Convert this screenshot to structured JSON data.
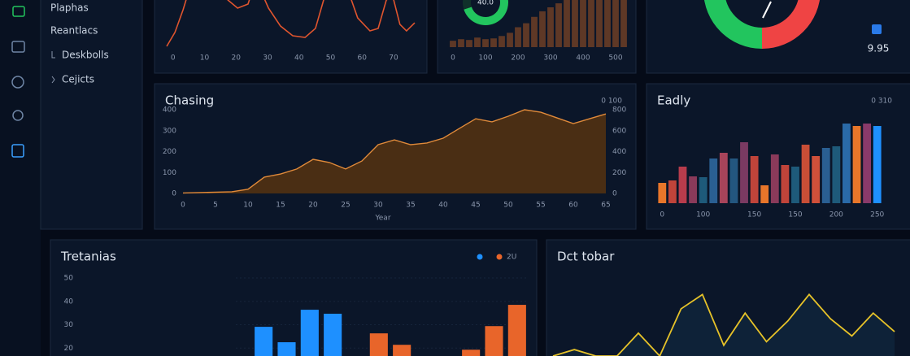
{
  "sidebar": {
    "items": [
      "Plaphas",
      "Reantlacs",
      "Deskbolls",
      "Cejicts"
    ]
  },
  "chart_data": [
    {
      "type": "line",
      "x": [
        -2,
        0.6,
        3.2,
        5.7,
        9.6,
        13.5,
        17.4,
        20.5,
        23.8,
        26.3,
        30.3,
        34.1,
        38,
        41.9,
        45.2,
        47.8,
        50.9,
        54.8,
        58.6,
        62.5,
        65.1,
        67.7,
        69.7,
        72,
        74.1,
        76.7
      ],
      "series": [
        {
          "color": "#e0552e",
          "values": [
            1,
            18.4,
            46.9,
            79.6,
            94.9,
            89.8,
            59.2,
            49,
            54.1,
            84.7,
            49,
            26.5,
            14.3,
            12.2,
            23.5,
            59.2,
            89.8,
            79.6,
            36.7,
            20.4,
            23.5,
            59.2,
            64.3,
            28.6,
            20.4,
            30.6
          ]
        }
      ],
      "xlim": [
        -2,
        78
      ],
      "ylim": [
        0,
        100
      ],
      "xticks": [
        0,
        10,
        20,
        30,
        40,
        50,
        60,
        70
      ]
    },
    {
      "type": "bar",
      "categories": [
        "0",
        null,
        null,
        null,
        "100",
        null,
        null,
        null,
        "200",
        null,
        null,
        null,
        "300",
        null,
        null,
        null,
        "400",
        null,
        null,
        null,
        "500",
        null
      ],
      "values": [
        8,
        10,
        9,
        12,
        10,
        11,
        14,
        18,
        25,
        30,
        38,
        45,
        50,
        55,
        62,
        70,
        78,
        80,
        85,
        90,
        95,
        100
      ],
      "color": "#5e3826",
      "ylim": [
        0,
        100
      ]
    },
    {
      "type": "donut",
      "values": [
        70,
        30
      ],
      "colors": [
        "#22c55e",
        "#10302a"
      ],
      "center_label": "40.0"
    },
    {
      "type": "donut",
      "values": [
        50,
        50
      ],
      "colors": [
        "#ef4444",
        "#22c55e"
      ],
      "caption": "9.95"
    },
    {
      "type": "area",
      "title": "Chasing",
      "corner_label": "0 100",
      "xlabel": "Year",
      "x": [
        0,
        2.5,
        5,
        7.5,
        10,
        12.5,
        15,
        17.5,
        20,
        22.5,
        25,
        27.5,
        30,
        32.5,
        35,
        37.5,
        40,
        42.5,
        45,
        47.5,
        50,
        52.5,
        55,
        57.5,
        60,
        62.5,
        65
      ],
      "values": [
        2,
        4,
        6,
        8,
        20,
        78,
        93,
        117,
        163,
        148,
        117,
        155,
        233,
        256,
        233,
        241,
        264,
        311,
        357,
        342,
        369,
        400,
        388,
        361,
        334,
        357,
        380
      ],
      "color": "#e08a3a",
      "xlim": [
        0,
        65
      ],
      "xticks": [
        0,
        5,
        10,
        15,
        20,
        25,
        30,
        35,
        40,
        45,
        50,
        55,
        60,
        65
      ],
      "ylim": [
        0,
        400
      ],
      "yticks": [
        0,
        100,
        200,
        300,
        400
      ],
      "y2lim": [
        0,
        800
      ],
      "y2ticks": [
        0,
        200,
        400,
        600,
        800
      ]
    },
    {
      "type": "bar",
      "title": "Eadly",
      "corner_label": "0 310",
      "categories": [
        "0",
        null,
        null,
        null,
        "100",
        null,
        null,
        null,
        null,
        "150",
        null,
        null,
        null,
        "150",
        null,
        null,
        null,
        "200",
        null,
        null,
        null,
        "250"
      ],
      "values": [
        25,
        28,
        45,
        33,
        32,
        55,
        62,
        55,
        75,
        58,
        22,
        60,
        47,
        45,
        72,
        58,
        68,
        70,
        98,
        95,
        98,
        95
      ],
      "colors": [
        "#e8762a",
        "#c0443a",
        "#b83c4c",
        "#8a3a5a",
        "#1e5a7a",
        "#2a5f92",
        "#a8445a",
        "#23567f",
        "#7a3a62",
        "#c0443a",
        "#e8762a",
        "#8a3a5a",
        "#c0443a",
        "#1e5a7a",
        "#c84e36",
        "#d0503a",
        "#2a5f92",
        "#1e5a7a",
        "#2a6aa8",
        "#e8762a",
        "#8a3a6a",
        "#1e90ff"
      ],
      "ylim": [
        0,
        100
      ]
    },
    {
      "type": "bar",
      "title": "Tretanias",
      "categories": [
        null,
        null,
        null,
        null,
        null,
        null,
        null,
        null,
        null,
        null,
        null,
        null
      ],
      "series": [
        {
          "color": "#1e90ff",
          "values": [
            29.1,
            22.5,
            36.4,
            34.7,
            null,
            null,
            null,
            null,
            null,
            null,
            null,
            null
          ]
        },
        {
          "name": "2U",
          "color": "#e8652a",
          "values": [
            null,
            null,
            null,
            null,
            null,
            26.3,
            21.4,
            null,
            null,
            19.3,
            29.4,
            38.5
          ]
        }
      ],
      "ylim": [
        10,
        50
      ],
      "yticks": [
        20,
        30,
        40,
        50
      ]
    },
    {
      "type": "line",
      "title": "Dct tobar",
      "color": "#e6c229",
      "values": [
        0,
        9,
        0,
        0,
        32,
        0,
        66,
        86,
        15,
        60,
        20,
        49,
        86,
        52,
        28,
        60,
        34
      ],
      "ylim": [
        0,
        100
      ]
    }
  ]
}
